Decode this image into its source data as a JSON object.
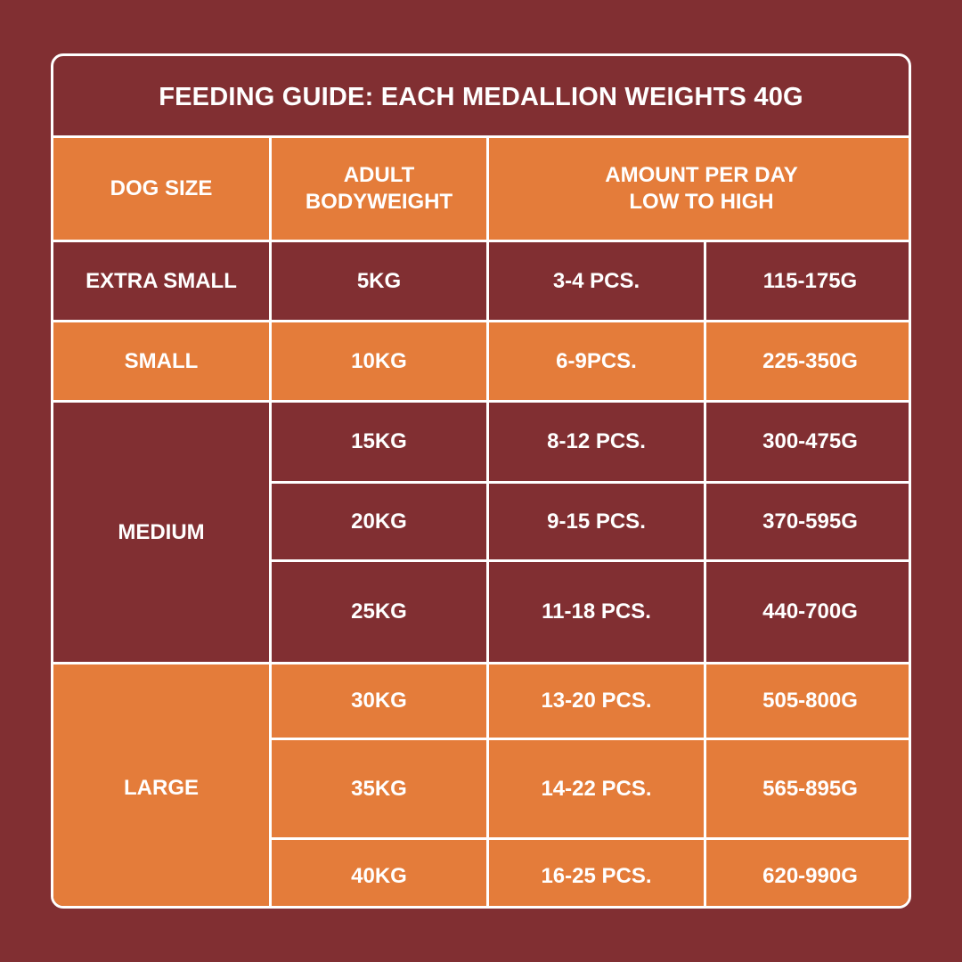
{
  "title": "FEEDING GUIDE: EACH MEDALLION WEIGHTS 40G",
  "colors": {
    "maroon": "#812f32",
    "orange": "#e47c3a",
    "border": "#ffffff"
  },
  "headers": {
    "dog_size": "DOG SIZE",
    "bodyweight_line1": "ADULT",
    "bodyweight_line2": "BODYWEIGHT",
    "amount_line1": "AMOUNT PER DAY",
    "amount_line2": "LOW TO HIGH"
  },
  "groups": [
    {
      "size": "EXTRA SMALL",
      "rows": [
        {
          "weight": "5KG",
          "pieces": "3-4 PCS.",
          "grams": "115-175G"
        }
      ]
    },
    {
      "size": "SMALL",
      "rows": [
        {
          "weight": "10KG",
          "pieces": "6-9PCS.",
          "grams": "225-350G"
        }
      ]
    },
    {
      "size": "MEDIUM",
      "rows": [
        {
          "weight": "15KG",
          "pieces": "8-12 PCS.",
          "grams": "300-475G"
        },
        {
          "weight": "20KG",
          "pieces": "9-15 PCS.",
          "grams": "370-595G"
        },
        {
          "weight": "25KG",
          "pieces": "11-18 PCS.",
          "grams": "440-700G"
        }
      ]
    },
    {
      "size": "LARGE",
      "rows": [
        {
          "weight": "30KG",
          "pieces": "13-20 PCS.",
          "grams": "505-800G"
        },
        {
          "weight": "35KG",
          "pieces": "14-22 PCS.",
          "grams": "565-895G"
        },
        {
          "weight": "40KG",
          "pieces": "16-25 PCS.",
          "grams": "620-990G"
        }
      ]
    }
  ]
}
